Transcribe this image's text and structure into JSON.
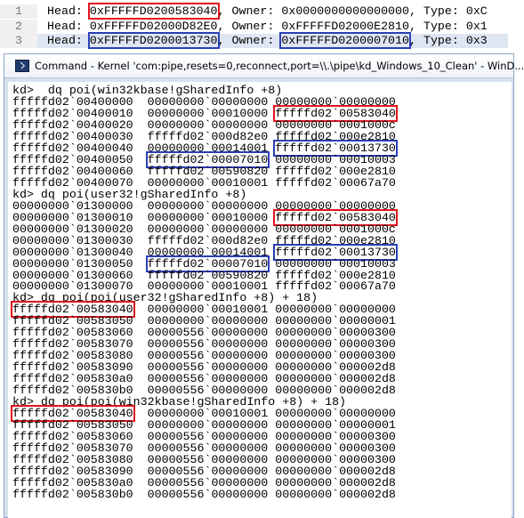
{
  "editor": {
    "lines": [
      {
        "number": "1",
        "segments": [
          "Head: ",
          "0xFFFFFD0200583040",
          ", Owner: ",
          "0x0000000000000000",
          ", Type: 0xC"
        ]
      },
      {
        "number": "2",
        "segments": [
          "Head: ",
          "0xFFFFFD02000D82E0",
          ", Owner: ",
          "0xFFFFFD02000E2810",
          ", Type: 0x1"
        ]
      },
      {
        "number": "3",
        "segments": [
          "Head: ",
          "0xFFFFFD0200013730",
          ", Owner: ",
          "0xFFFFFD0200007010",
          ", Type: 0x3"
        ]
      }
    ]
  },
  "window": {
    "title": "Command - Kernel 'com:pipe,resets=0,reconnect,port=\\\\.\\pipe\\kd_Windows_10_Clean' - WinD..."
  },
  "console": {
    "sections": [
      {
        "command": "kd>  dq poi(win32kbase!gSharedInfo +8)",
        "rows": [
          [
            "fffffd02`00400000",
            "00000000`00000000",
            "00000000`00000000"
          ],
          [
            "fffffd02`00400010",
            "00000000`00010000",
            "fffffd02`00583040"
          ],
          [
            "fffffd02`00400020",
            "00000000`00000000",
            "00000000`0001000c"
          ],
          [
            "fffffd02`00400030",
            "fffffd02`000d82e0",
            "fffffd02`000e2810"
          ],
          [
            "fffffd02`00400040",
            "00000000`00014001",
            "fffffd02`00013730"
          ],
          [
            "fffffd02`00400050",
            "fffffd02`00007010",
            "00000000`00010003"
          ],
          [
            "fffffd02`00400060",
            "fffffd02`00590820",
            "fffffd02`000e2810"
          ],
          [
            "fffffd02`00400070",
            "00000000`00010001",
            "fffffd02`00067a70"
          ]
        ]
      },
      {
        "command": "kd> dq poi(user32!gSharedInfo +8)",
        "rows": [
          [
            "00000000`01300000",
            "00000000`00000000",
            "00000000`00000000"
          ],
          [
            "00000000`01300010",
            "00000000`00010000",
            "fffffd02`00583040"
          ],
          [
            "00000000`01300020",
            "00000000`00000000",
            "00000000`0001000c"
          ],
          [
            "00000000`01300030",
            "fffffd02`000d82e0",
            "fffffd02`000e2810"
          ],
          [
            "00000000`01300040",
            "00000000`00014001",
            "fffffd02`00013730"
          ],
          [
            "00000000`01300050",
            "fffffd02`00007010",
            "00000000`00010003"
          ],
          [
            "00000000`01300060",
            "fffffd02`00590820",
            "fffffd02`000e2810"
          ],
          [
            "00000000`01300070",
            "00000000`00010001",
            "fffffd02`00067a70"
          ]
        ]
      },
      {
        "command": "kd> dq poi(poi(user32!gSharedInfo +8) + 18)",
        "rows": [
          [
            "fffffd02`00583040",
            "00000000`00010001",
            "00000000`00000000"
          ],
          [
            "fffffd02`00583050",
            "00000000`00000000",
            "00000000`00000001"
          ],
          [
            "fffffd02`00583060",
            "00000556`00000000",
            "00000000`00000300"
          ],
          [
            "fffffd02`00583070",
            "00000556`00000000",
            "00000000`00000300"
          ],
          [
            "fffffd02`00583080",
            "00000556`00000000",
            "00000000`00000300"
          ],
          [
            "fffffd02`00583090",
            "00000556`00000000",
            "00000000`000002d8"
          ],
          [
            "fffffd02`005830a0",
            "00000556`00000000",
            "00000000`000002d8"
          ],
          [
            "fffffd02`005830b0",
            "00000556`00000000",
            "00000000`000002d8"
          ]
        ]
      },
      {
        "command": "kd> dq poi(poi(win32kbase!gSharedInfo +8) + 18)",
        "rows": [
          [
            "fffffd02`00583040",
            "00000000`00010001",
            "00000000`00000000"
          ],
          [
            "fffffd02`00583050",
            "00000000`00000000",
            "00000000`00000001"
          ],
          [
            "fffffd02`00583060",
            "00000556`00000000",
            "00000000`00000300"
          ],
          [
            "fffffd02`00583070",
            "00000556`00000000",
            "00000000`00000300"
          ],
          [
            "fffffd02`00583080",
            "00000556`00000000",
            "00000000`00000300"
          ],
          [
            "fffffd02`00583090",
            "00000556`00000000",
            "00000000`000002d8"
          ],
          [
            "fffffd02`005830a0",
            "00000556`00000000",
            "00000000`000002d8"
          ],
          [
            "fffffd02`005830b0",
            "00000556`00000000",
            "00000000`000002d8"
          ]
        ]
      }
    ]
  }
}
